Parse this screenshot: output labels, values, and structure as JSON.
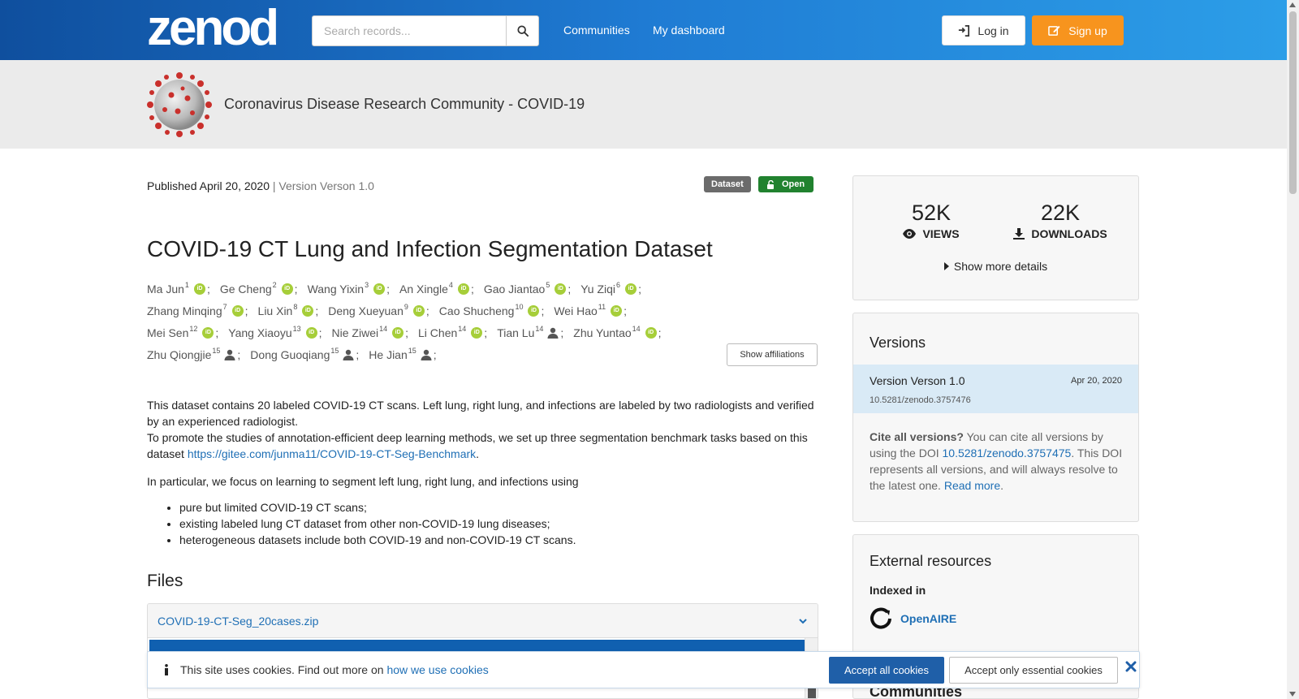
{
  "header": {
    "logo_text": "zenodo",
    "search_placeholder": "Search records...",
    "nav": [
      {
        "label": "Communities"
      },
      {
        "label": "My dashboard"
      }
    ],
    "login_label": "Log in",
    "signup_label": "Sign up"
  },
  "community": {
    "title": "Coronavirus Disease Research Community - COVID-19"
  },
  "record": {
    "published_label": "Published April 20, 2020",
    "version_label": "| Version Verson 1.0",
    "badge_type": "Dataset",
    "badge_access": "Open",
    "title": "COVID-19 CT Lung and Infection Segmentation Dataset",
    "author_rows": [
      [
        {
          "name": "Ma Jun",
          "sup": "1",
          "icon": "orcid-icon"
        },
        {
          "name": "Ge Cheng",
          "sup": "2",
          "icon": "orcid-icon"
        },
        {
          "name": "Wang Yixin",
          "sup": "3",
          "icon": "orcid-icon"
        },
        {
          "name": "An Xingle",
          "sup": "4",
          "icon": "orcid-icon"
        },
        {
          "name": "Gao Jiantao",
          "sup": "5",
          "icon": "orcid-icon"
        },
        {
          "name": "Yu Ziqi",
          "sup": "6",
          "icon": "orcid-icon"
        }
      ],
      [
        {
          "name": "Zhang Minqing",
          "sup": "7",
          "icon": "orcid-icon"
        },
        {
          "name": "Liu Xin",
          "sup": "8",
          "icon": "orcid-icon"
        },
        {
          "name": "Deng Xueyuan",
          "sup": "9",
          "icon": "orcid-icon"
        },
        {
          "name": "Cao Shucheng",
          "sup": "10",
          "icon": "orcid-icon"
        },
        {
          "name": "Wei Hao",
          "sup": "11",
          "icon": "orcid-icon"
        }
      ],
      [
        {
          "name": "Mei Sen",
          "sup": "12",
          "icon": "orcid-icon"
        },
        {
          "name": "Yang Xiaoyu",
          "sup": "13",
          "icon": "orcid-icon"
        },
        {
          "name": "Nie Ziwei",
          "sup": "14",
          "icon": "orcid-icon"
        },
        {
          "name": "Li Chen",
          "sup": "14",
          "icon": "orcid-icon"
        },
        {
          "name": "Tian Lu",
          "sup": "14",
          "icon": "person-icon"
        },
        {
          "name": "Zhu Yuntao",
          "sup": "14",
          "icon": "orcid-icon"
        }
      ],
      [
        {
          "name": "Zhu Qiongjie",
          "sup": "15",
          "icon": "person-icon"
        },
        {
          "name": "Dong Guoqiang",
          "sup": "15",
          "icon": "person-icon"
        },
        {
          "name": "He Jian",
          "sup": "15",
          "icon": "person-icon"
        }
      ]
    ],
    "show_affiliations_label": "Show affiliations",
    "description": {
      "line1": "This dataset contains 20 labeled COVID-19 CT scans. Left lung, right lung, and infections are labeled by two radiologists and verified by an experienced radiologist.",
      "line2_prefix": "To promote the studies of annotation-efficient deep learning methods, we set up three segmentation benchmark tasks based on this dataset ",
      "line2_link": "https://gitee.com/junma11/COVID-19-CT-Seg-Benchmark",
      "line2_suffix": ".",
      "para2": "In particular, we focus on learning to segment left lung, right lung, and infections using",
      "bullets": [
        "pure but limited COVID-19 CT scans;",
        "existing labeled lung CT dataset from other non-COVID-19 lung diseases;",
        "heterogeneous datasets include both COVID-19 and non-COVID-19 CT scans."
      ]
    },
    "files_heading": "Files",
    "file_name": "COVID-19-CT-Seg_20cases.zip"
  },
  "sidebar": {
    "views_count": "52K",
    "views_label": "VIEWS",
    "downloads_count": "22K",
    "downloads_label": "DOWNLOADS",
    "show_more_label": "Show more details",
    "versions_heading": "Versions",
    "version_name": "Version Verson 1.0",
    "version_date": "Apr 20, 2020",
    "version_doi": "10.5281/zenodo.3757476",
    "cite_bold": "Cite all versions?",
    "cite_text1": " You can cite all versions by using the DOI ",
    "cite_doi": "10.5281/zenodo.3757475",
    "cite_text2": ". This DOI represents all versions, and will always resolve to the latest one. ",
    "cite_read_more": "Read more",
    "cite_end": ".",
    "external_heading": "External resources",
    "indexed_label": "Indexed in",
    "openaire_label": "OpenAIRE",
    "communities_heading": "Communities"
  },
  "cookie": {
    "text": "This site uses cookies. Find out more on ",
    "link": "how we use cookies",
    "accept_all": "Accept all cookies",
    "accept_essential": "Accept only essential cookies"
  },
  "colors": {
    "header_start": "#0f4f9e",
    "header_end": "#2c9ee8",
    "signup": "#f7941e",
    "open_badge": "#21822f",
    "orcid": "#a6ce39",
    "link": "#1f6fb5"
  }
}
